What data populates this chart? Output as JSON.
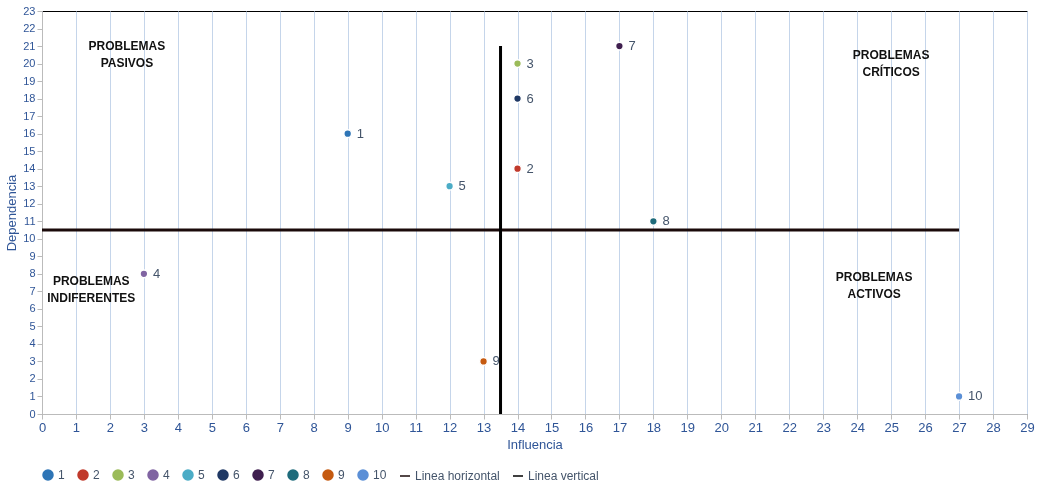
{
  "chart_data": {
    "type": "scatter",
    "xlabel": "Influencia",
    "ylabel": "Dependencia",
    "xlim": [
      0,
      29
    ],
    "xticks": [
      0,
      1,
      2,
      3,
      4,
      5,
      6,
      7,
      8,
      9,
      10,
      11,
      12,
      13,
      14,
      15,
      16,
      17,
      18,
      19,
      20,
      21,
      22,
      23,
      24,
      25,
      26,
      27,
      28,
      29
    ],
    "ylim": [
      0,
      23
    ],
    "yticks": [
      0,
      1,
      2,
      3,
      4,
      5,
      6,
      7,
      8,
      9,
      10,
      11,
      12,
      13,
      14,
      15,
      16,
      17,
      18,
      19,
      20,
      21,
      22,
      23
    ],
    "grid": "x",
    "legend": "bottom",
    "marker": "circle",
    "annotations": [
      "PROBLEMAS PASIVOS",
      "PROBLEMAS CRÍTICOS",
      "PROBLEMAS INDIFERENTES",
      "PROBLEMAS ACTIVOS"
    ],
    "series": [
      {
        "name": "1",
        "color": "#2e75b6",
        "x": [
          9
        ],
        "values": [
          16
        ]
      },
      {
        "name": "2",
        "color": "#c0392b",
        "x": [
          14
        ],
        "values": [
          14
        ]
      },
      {
        "name": "3",
        "color": "#9bbb59",
        "x": [
          14
        ],
        "values": [
          20
        ]
      },
      {
        "name": "4",
        "color": "#8064a2",
        "x": [
          3
        ],
        "values": [
          8
        ]
      },
      {
        "name": "5",
        "color": "#4bacc6",
        "x": [
          12
        ],
        "values": [
          13
        ]
      },
      {
        "name": "6",
        "color": "#1f3864",
        "x": [
          14
        ],
        "values": [
          18
        ]
      },
      {
        "name": "7",
        "color": "#3f1f4f",
        "x": [
          17
        ],
        "values": [
          21
        ]
      },
      {
        "name": "8",
        "color": "#1e6b7b",
        "x": [
          18
        ],
        "values": [
          11
        ]
      },
      {
        "name": "9",
        "color": "#c55a11",
        "x": [
          13
        ],
        "values": [
          3
        ]
      },
      {
        "name": "10",
        "color": "#5b8fd6",
        "x": [
          27
        ],
        "values": [
          1
        ]
      },
      {
        "name": "Linea horizontal",
        "type": "line",
        "color": "#1a0a0a",
        "x": [
          0,
          27
        ],
        "values": [
          10.5,
          10.5
        ],
        "marker": "none",
        "line_style": "solid"
      },
      {
        "name": "Linea vertical",
        "type": "line",
        "color": "#000000",
        "x": [
          13.5,
          13.5
        ],
        "values": [
          0,
          21
        ],
        "marker": "none",
        "line_style": "solid"
      }
    ]
  }
}
